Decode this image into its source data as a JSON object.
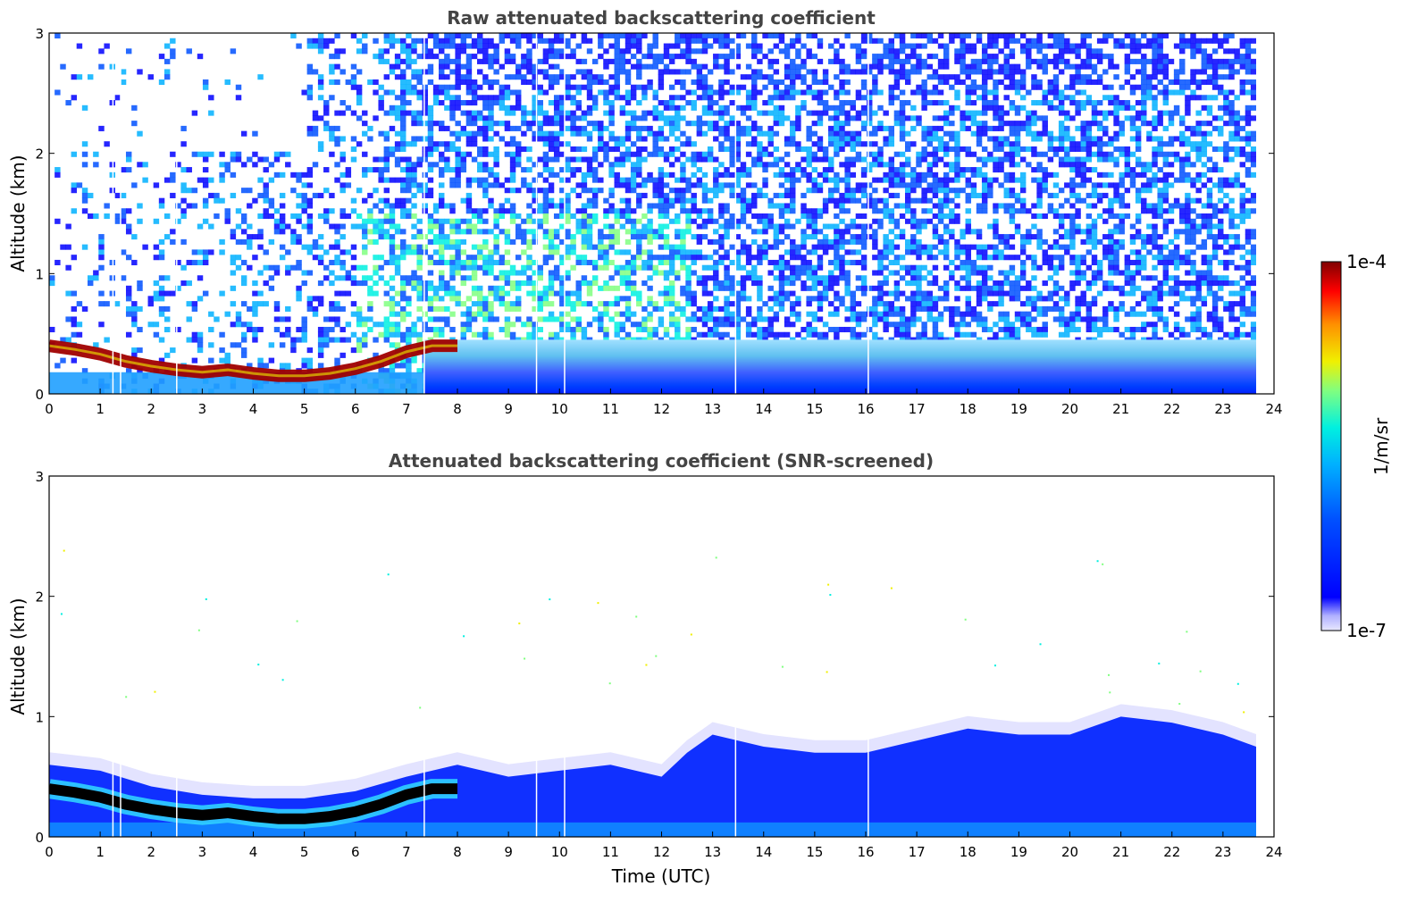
{
  "colors": {
    "colormap": [
      "#e8e8ff",
      "#b0b0ff",
      "#0000ff",
      "#0050ff",
      "#00b0ff",
      "#00f0e0",
      "#80ff80",
      "#f0f000",
      "#ff9000",
      "#ff0000",
      "#800000"
    ],
    "background": "#ffffff",
    "dark_layer": "#000000"
  },
  "colorbar": {
    "top_label": "1e-4",
    "bottom_label": "1e-7",
    "unit_label": "1/m/sr"
  },
  "chart_data": [
    {
      "type": "heatmap",
      "title": "Raw attenuated backscattering coefficient",
      "xlabel": "",
      "ylabel": "Altitude (km)",
      "xlim": [
        0,
        24
      ],
      "ylim": [
        0,
        3
      ],
      "xticks": [
        "0",
        "1",
        "2",
        "3",
        "4",
        "5",
        "6",
        "7",
        "8",
        "9",
        "10",
        "11",
        "12",
        "13",
        "14",
        "15",
        "16",
        "17",
        "18",
        "19",
        "20",
        "21",
        "22",
        "23",
        "24"
      ],
      "yticks": [
        "0",
        "1",
        "2",
        "3"
      ],
      "data_end_time": 23.65,
      "gap_times": [
        1.25,
        1.4,
        2.5,
        7.35,
        9.55,
        10.1,
        13.45,
        16.05
      ],
      "boundary_layer_top": {
        "time": [
          0,
          0.5,
          1,
          1.5,
          2,
          2.5,
          3,
          3.5,
          4,
          4.5,
          5,
          5.5,
          6,
          6.5,
          7,
          7.5,
          8
        ],
        "altitude_km": [
          0.55,
          0.52,
          0.48,
          0.42,
          0.38,
          0.35,
          0.33,
          0.35,
          0.32,
          0.3,
          0.3,
          0.32,
          0.36,
          0.42,
          0.5,
          0.55,
          0.55
        ]
      },
      "colorbar_range": [
        1e-07,
        0.0001
      ],
      "colorbar_unit": "1/m/sr"
    },
    {
      "type": "heatmap",
      "title": "Attenuated backscattering coefficient (SNR-screened)",
      "xlabel": "Time (UTC)",
      "ylabel": "Altitude (km)",
      "xlim": [
        0,
        24
      ],
      "ylim": [
        0,
        3
      ],
      "xticks": [
        "0",
        "1",
        "2",
        "3",
        "4",
        "5",
        "6",
        "7",
        "8",
        "9",
        "10",
        "11",
        "12",
        "13",
        "14",
        "15",
        "16",
        "17",
        "18",
        "19",
        "20",
        "21",
        "22",
        "23",
        "24"
      ],
      "yticks": [
        "0",
        "1",
        "2",
        "3"
      ],
      "data_end_time": 23.65,
      "gap_times": [
        1.25,
        1.4,
        2.5,
        7.35,
        9.55,
        10.1,
        13.45,
        16.05
      ],
      "aerosol_top": {
        "time": [
          0,
          1,
          2,
          3,
          4,
          5,
          6,
          7,
          8,
          9,
          10,
          11,
          12,
          12.5,
          13,
          14,
          15,
          16,
          17,
          18,
          19,
          20,
          21,
          22,
          23,
          23.65
        ],
        "altitude_km": [
          0.6,
          0.55,
          0.42,
          0.35,
          0.32,
          0.32,
          0.38,
          0.5,
          0.6,
          0.5,
          0.55,
          0.6,
          0.5,
          0.7,
          0.85,
          0.75,
          0.7,
          0.7,
          0.8,
          0.9,
          0.85,
          0.85,
          1.0,
          0.95,
          0.85,
          0.75
        ]
      },
      "colorbar_range": [
        1e-07,
        0.0001
      ],
      "colorbar_unit": "1/m/sr"
    }
  ]
}
